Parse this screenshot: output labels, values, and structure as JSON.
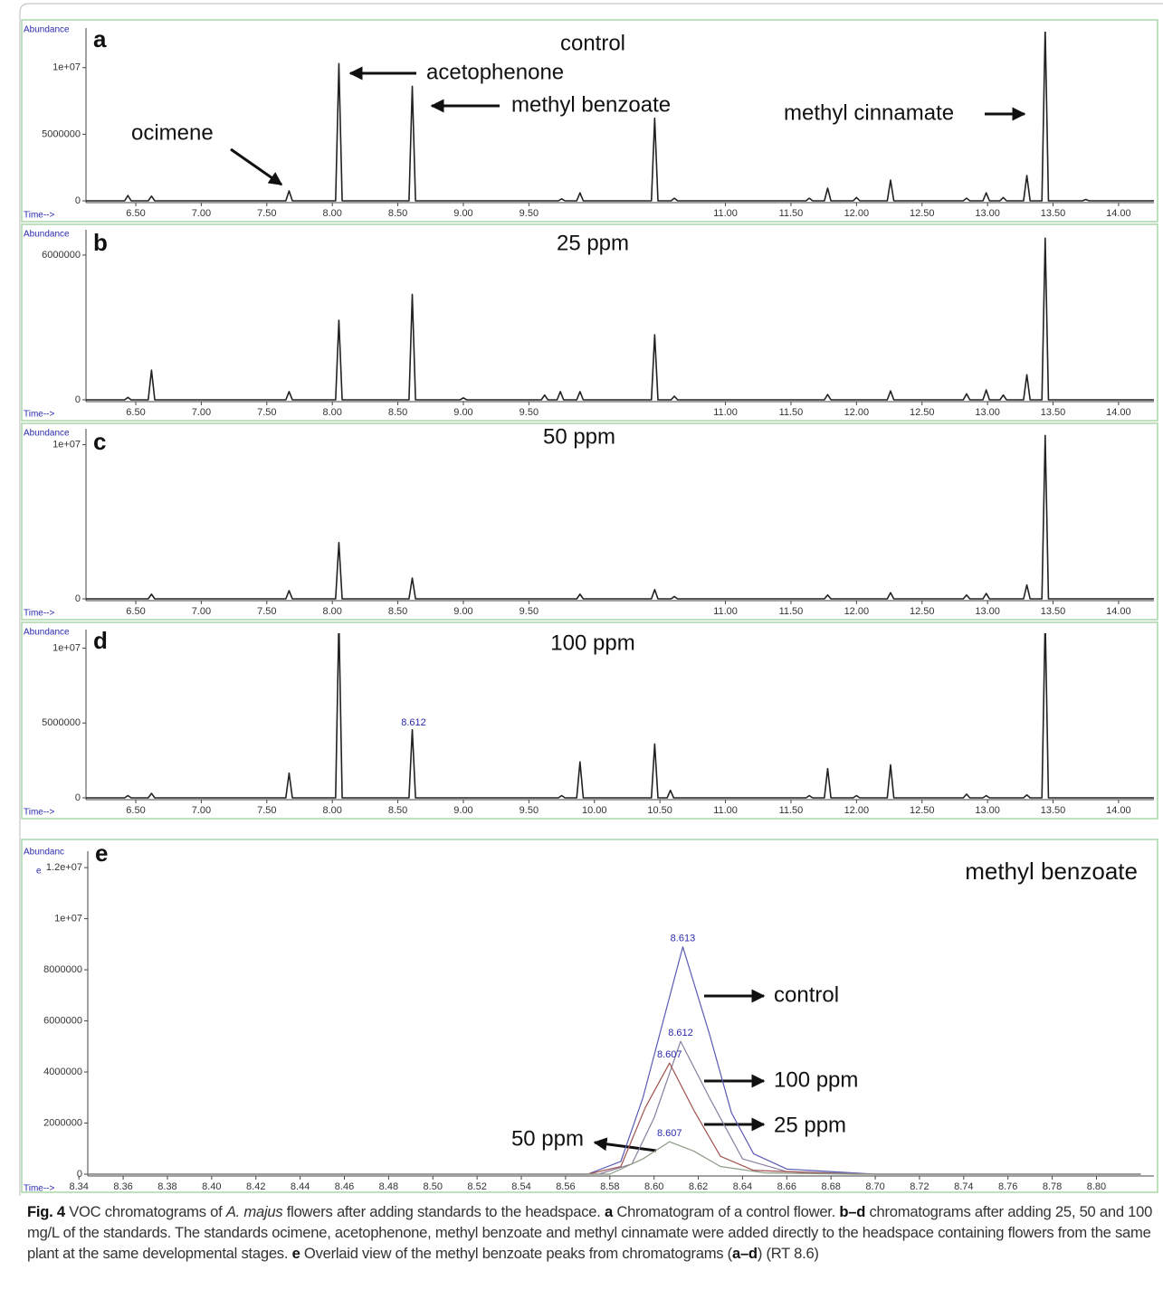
{
  "chart_data": [
    {
      "type": "line",
      "panel": "a",
      "title": "control",
      "y_label": "Abundance",
      "x_label": "Time-->",
      "annotations": [
        "ocimene",
        "acetophenone",
        "methyl benzoate",
        "methyl cinnamate"
      ],
      "xlim": [
        6.12,
        14.27
      ],
      "ylim": [
        0,
        12700000
      ],
      "xticks": [
        {
          "value": 6.5,
          "label": "6.50"
        },
        {
          "value": 7,
          "label": "7.00"
        },
        {
          "value": 7.5,
          "label": "7.50"
        },
        {
          "value": 8,
          "label": "8.00"
        },
        {
          "value": 8.5,
          "label": "8.50"
        },
        {
          "value": 9,
          "label": "9.00"
        },
        {
          "value": 9.5,
          "label": "9.50"
        },
        {
          "value": 11,
          "label": "11.00"
        },
        {
          "value": 11.5,
          "label": "11.50"
        },
        {
          "value": 12,
          "label": "12.00"
        },
        {
          "value": 12.5,
          "label": "12.50"
        },
        {
          "value": 13,
          "label": "13.00"
        },
        {
          "value": 13.5,
          "label": "13.50"
        },
        {
          "value": 14,
          "label": "14.00"
        }
      ],
      "yticks": [
        0,
        5000000,
        {
          "value": 10000000,
          "label": "1e+07"
        }
      ],
      "series": [
        {
          "color": "#222222",
          "x": [
            6.12,
            6.415,
            6.44,
            6.465,
            6.595,
            6.62,
            6.645,
            7.645,
            7.67,
            7.695,
            8.025,
            8.05,
            8.075,
            8.585,
            8.61,
            8.635,
            9.725,
            9.75,
            9.775,
            9.865,
            9.89,
            9.915,
            10.435,
            10.46,
            10.485,
            10.585,
            10.61,
            10.635,
            11.615,
            11.64,
            11.665,
            11.755,
            11.78,
            11.805,
            11.975,
            12.0,
            12.025,
            12.235,
            12.26,
            12.285,
            12.815,
            12.84,
            12.865,
            12.965,
            12.99,
            13.015,
            13.095,
            13.12,
            13.145,
            13.275,
            13.3,
            13.325,
            13.415,
            13.44,
            13.465,
            13.725,
            13.75,
            13.775,
            14.27
          ],
          "values": [
            0,
            0,
            400000,
            0,
            0,
            350000,
            0,
            0,
            750000,
            0,
            0,
            10300000,
            0,
            0,
            8600000,
            0,
            0,
            150000,
            0,
            0,
            600000,
            0,
            0,
            6200000,
            0,
            0,
            200000,
            0,
            0,
            200000,
            0,
            0,
            950000,
            0,
            0,
            250000,
            0,
            0,
            1550000,
            0,
            0,
            200000,
            0,
            0,
            600000,
            0,
            0,
            250000,
            0,
            0,
            1900000,
            0,
            0,
            13000000,
            0,
            0,
            100000,
            0,
            0
          ]
        }
      ]
    },
    {
      "type": "line",
      "panel": "b",
      "title": "25 ppm",
      "y_label": "Abundance",
      "x_label": "Time-->",
      "xlim": [
        6.12,
        14.27
      ],
      "ylim": [
        0,
        6900000
      ],
      "xticks": [
        {
          "value": 6.5,
          "label": "6.50"
        },
        {
          "value": 7,
          "label": "7.00"
        },
        {
          "value": 7.5,
          "label": "7.50"
        },
        {
          "value": 8,
          "label": "8.00"
        },
        {
          "value": 8.5,
          "label": "8.50"
        },
        {
          "value": 9,
          "label": "9.00"
        },
        {
          "value": 9.5,
          "label": "9.50"
        },
        {
          "value": 11,
          "label": "11.00"
        },
        {
          "value": 11.5,
          "label": "11.50"
        },
        {
          "value": 12,
          "label": "12.00"
        },
        {
          "value": 12.5,
          "label": "12.50"
        },
        {
          "value": 13,
          "label": "13.00"
        },
        {
          "value": 13.5,
          "label": "13.50"
        },
        {
          "value": 14,
          "label": "14.00"
        }
      ],
      "yticks": [
        0,
        6000000
      ],
      "series": [
        {
          "color": "#222222",
          "x": [
            6.12,
            6.415,
            6.44,
            6.465,
            6.595,
            6.62,
            6.645,
            7.645,
            7.67,
            7.695,
            8.025,
            8.05,
            8.075,
            8.585,
            8.61,
            8.635,
            8.975,
            9.0,
            9.025,
            9.595,
            9.62,
            9.645,
            9.715,
            9.74,
            9.765,
            9.865,
            9.89,
            9.915,
            10.435,
            10.46,
            10.485,
            10.585,
            10.61,
            10.635,
            11.755,
            11.78,
            11.805,
            12.235,
            12.26,
            12.285,
            12.815,
            12.84,
            12.865,
            12.965,
            12.99,
            13.015,
            13.095,
            13.12,
            13.145,
            13.275,
            13.3,
            13.325,
            13.415,
            13.44,
            13.465,
            14.27
          ],
          "values": [
            0,
            0,
            100000,
            0,
            0,
            1230000,
            0,
            0,
            340000,
            0,
            0,
            3300000,
            0,
            0,
            4370000,
            0,
            0,
            80000,
            0,
            0,
            200000,
            0,
            0,
            340000,
            0,
            0,
            340000,
            0,
            0,
            2700000,
            0,
            0,
            150000,
            0,
            0,
            220000,
            0,
            0,
            370000,
            0,
            0,
            250000,
            0,
            0,
            410000,
            0,
            0,
            200000,
            0,
            0,
            1040000,
            0,
            0,
            6700000,
            0,
            0
          ]
        }
      ]
    },
    {
      "type": "line",
      "panel": "c",
      "title": "50 ppm",
      "y_label": "Abundance",
      "x_label": "Time-->",
      "xlim": [
        6.12,
        14.27
      ],
      "ylim": [
        0,
        10800000
      ],
      "xticks": [
        {
          "value": 6.5,
          "label": "6.50"
        },
        {
          "value": 7,
          "label": "7.00"
        },
        {
          "value": 7.5,
          "label": "7.50"
        },
        {
          "value": 8,
          "label": "8.00"
        },
        {
          "value": 8.5,
          "label": "8.50"
        },
        {
          "value": 9,
          "label": "9.00"
        },
        {
          "value": 9.5,
          "label": "9.50"
        },
        {
          "value": 11,
          "label": "11.00"
        },
        {
          "value": 11.5,
          "label": "11.50"
        },
        {
          "value": 12,
          "label": "12.00"
        },
        {
          "value": 12.5,
          "label": "12.50"
        },
        {
          "value": 13,
          "label": "13.00"
        },
        {
          "value": 13.5,
          "label": "13.50"
        },
        {
          "value": 14,
          "label": "14.00"
        }
      ],
      "yticks": [
        0,
        {
          "value": 10000000,
          "label": "1e+07"
        }
      ],
      "series": [
        {
          "color": "#222222",
          "x": [
            6.12,
            6.595,
            6.62,
            6.645,
            7.645,
            7.67,
            7.695,
            8.025,
            8.05,
            8.075,
            8.585,
            8.61,
            8.635,
            9.865,
            9.89,
            9.915,
            10.435,
            10.46,
            10.485,
            10.585,
            10.61,
            10.635,
            11.755,
            11.78,
            11.805,
            12.235,
            12.26,
            12.285,
            12.815,
            12.84,
            12.865,
            12.965,
            12.99,
            13.015,
            13.275,
            13.3,
            13.325,
            13.415,
            13.44,
            13.465,
            14.27
          ],
          "values": [
            0,
            0,
            300000,
            0,
            0,
            530000,
            0,
            0,
            3650000,
            0,
            0,
            1350000,
            0,
            0,
            300000,
            0,
            0,
            600000,
            0,
            0,
            150000,
            0,
            0,
            250000,
            0,
            0,
            400000,
            0,
            0,
            250000,
            0,
            0,
            350000,
            0,
            0,
            900000,
            0,
            0,
            10600000,
            0,
            0
          ]
        }
      ]
    },
    {
      "type": "line",
      "panel": "d",
      "title": "100 ppm",
      "y_label": "Abundance",
      "x_label": "Time-->",
      "xlim": [
        6.12,
        14.27
      ],
      "ylim": [
        0,
        11000000
      ],
      "xticks": [
        {
          "value": 6.5,
          "label": "6.50"
        },
        {
          "value": 7,
          "label": "7.00"
        },
        {
          "value": 7.5,
          "label": "7.50"
        },
        {
          "value": 8,
          "label": "8.00"
        },
        {
          "value": 8.5,
          "label": "8.50"
        },
        {
          "value": 9,
          "label": "9.00"
        },
        {
          "value": 9.5,
          "label": "9.50"
        },
        {
          "value": 10,
          "label": "10.00"
        },
        {
          "value": 10.5,
          "label": "10.50"
        },
        {
          "value": 11,
          "label": "11.00"
        },
        {
          "value": 11.5,
          "label": "11.50"
        },
        {
          "value": 12,
          "label": "12.00"
        },
        {
          "value": 12.5,
          "label": "12.50"
        },
        {
          "value": 13,
          "label": "13.00"
        },
        {
          "value": 13.5,
          "label": "13.50"
        },
        {
          "value": 14,
          "label": "14.00"
        }
      ],
      "yticks": [
        0,
        5000000,
        {
          "value": 10000000,
          "label": "1e+07"
        }
      ],
      "series": [
        {
          "color": "#222222",
          "peak_label": "8.612",
          "x": [
            6.12,
            6.415,
            6.44,
            6.465,
            6.595,
            6.62,
            6.645,
            7.645,
            7.67,
            7.695,
            8.025,
            8.05,
            8.075,
            8.585,
            8.61,
            8.635,
            9.725,
            9.75,
            9.775,
            9.865,
            9.89,
            9.915,
            10.435,
            10.46,
            10.485,
            10.555,
            10.58,
            10.605,
            11.615,
            11.64,
            11.665,
            11.755,
            11.78,
            11.805,
            11.975,
            12.0,
            12.025,
            12.235,
            12.26,
            12.285,
            12.815,
            12.84,
            12.865,
            12.965,
            12.99,
            13.015,
            13.275,
            13.3,
            13.325,
            13.415,
            13.44,
            13.465,
            14.27
          ],
          "values": [
            0,
            0,
            150000,
            0,
            0,
            300000,
            0,
            0,
            1650000,
            0,
            0,
            12000000,
            0,
            0,
            4550000,
            0,
            0,
            150000,
            0,
            0,
            2400000,
            0,
            0,
            3600000,
            0,
            0,
            500000,
            0,
            0,
            150000,
            0,
            0,
            1950000,
            0,
            0,
            150000,
            0,
            0,
            2200000,
            0,
            0,
            250000,
            0,
            0,
            150000,
            0,
            0,
            200000,
            0,
            0,
            12000000,
            0,
            0
          ]
        }
      ]
    },
    {
      "type": "line",
      "panel": "e",
      "title": "methyl benzoate",
      "y_label": [
        "Abundanc",
        "e"
      ],
      "x_label": "Time-->",
      "xlim": [
        8.344,
        8.826
      ],
      "ylim": [
        0,
        12500000
      ],
      "xticks": [
        8.34,
        8.36,
        8.38,
        {
          "value": 8.4,
          "label": "8.40"
        },
        8.42,
        8.44,
        8.46,
        8.48,
        {
          "value": 8.5,
          "label": "8.50"
        },
        8.52,
        8.54,
        8.56,
        8.58,
        {
          "value": 8.6,
          "label": "8.60"
        },
        8.62,
        8.64,
        8.66,
        8.68,
        {
          "value": 8.7,
          "label": "8.70"
        },
        8.72,
        8.74,
        8.76,
        8.78,
        {
          "value": 8.8,
          "label": "8.80"
        }
      ],
      "yticks": [
        0,
        2000000,
        4000000,
        6000000,
        8000000,
        {
          "value": 10000000,
          "label": "1e+07"
        },
        {
          "value": 12000000,
          "label": "1.2e+07"
        }
      ],
      "series": [
        {
          "name": "control",
          "color": "#5a5ab4",
          "peak_label": "8.613",
          "x": [
            8.344,
            8.57,
            8.585,
            8.595,
            8.613,
            8.625,
            8.635,
            8.645,
            8.66,
            8.7,
            8.82
          ],
          "values": [
            0,
            0,
            500000,
            3000000,
            8900000,
            5500000,
            2400000,
            800000,
            200000,
            0,
            0
          ]
        },
        {
          "name": "100 ppm",
          "color": "#8a7e9e",
          "peak_label": "8.612",
          "x": [
            8.344,
            8.575,
            8.59,
            8.6,
            8.612,
            8.625,
            8.64,
            8.66,
            8.7,
            8.82
          ],
          "values": [
            0,
            0,
            400000,
            2200000,
            5200000,
            3000000,
            600000,
            100000,
            0,
            0
          ]
        },
        {
          "name": "25 ppm",
          "color": "#a0524e",
          "peak_label": "8.607",
          "x": [
            8.344,
            8.57,
            8.585,
            8.596,
            8.607,
            8.618,
            8.63,
            8.645,
            8.69,
            8.82
          ],
          "values": [
            0,
            0,
            300000,
            2600000,
            4350000,
            2500000,
            700000,
            150000,
            0,
            0
          ]
        },
        {
          "name": "50 ppm",
          "color": "#8c9a86",
          "peak_label": "8.607",
          "x": [
            8.344,
            8.58,
            8.595,
            8.607,
            8.618,
            8.63,
            8.65,
            8.69,
            8.82
          ],
          "values": [
            0,
            0,
            600000,
            1270000,
            900000,
            300000,
            50000,
            0,
            0
          ]
        }
      ]
    }
  ],
  "caption": [
    "Fig. 4",
    " VOC chromatograms of ",
    "A. majus",
    " flowers after adding standards to the headspace. ",
    "a",
    " Chromatogram of a control flower. ",
    "b–d",
    " chromatograms after adding 25, 50 and 100 mg/L of the standards. The standards ocimene, acetophenone, methyl benzoate and methyl cinnamate were added directly to the headspace containing flowers from the same plant at the same developmental stages. ",
    "e",
    " Overlaid view of the methyl benzoate peaks from chromatograms (",
    "a–d",
    ") (RT 8.6)"
  ]
}
